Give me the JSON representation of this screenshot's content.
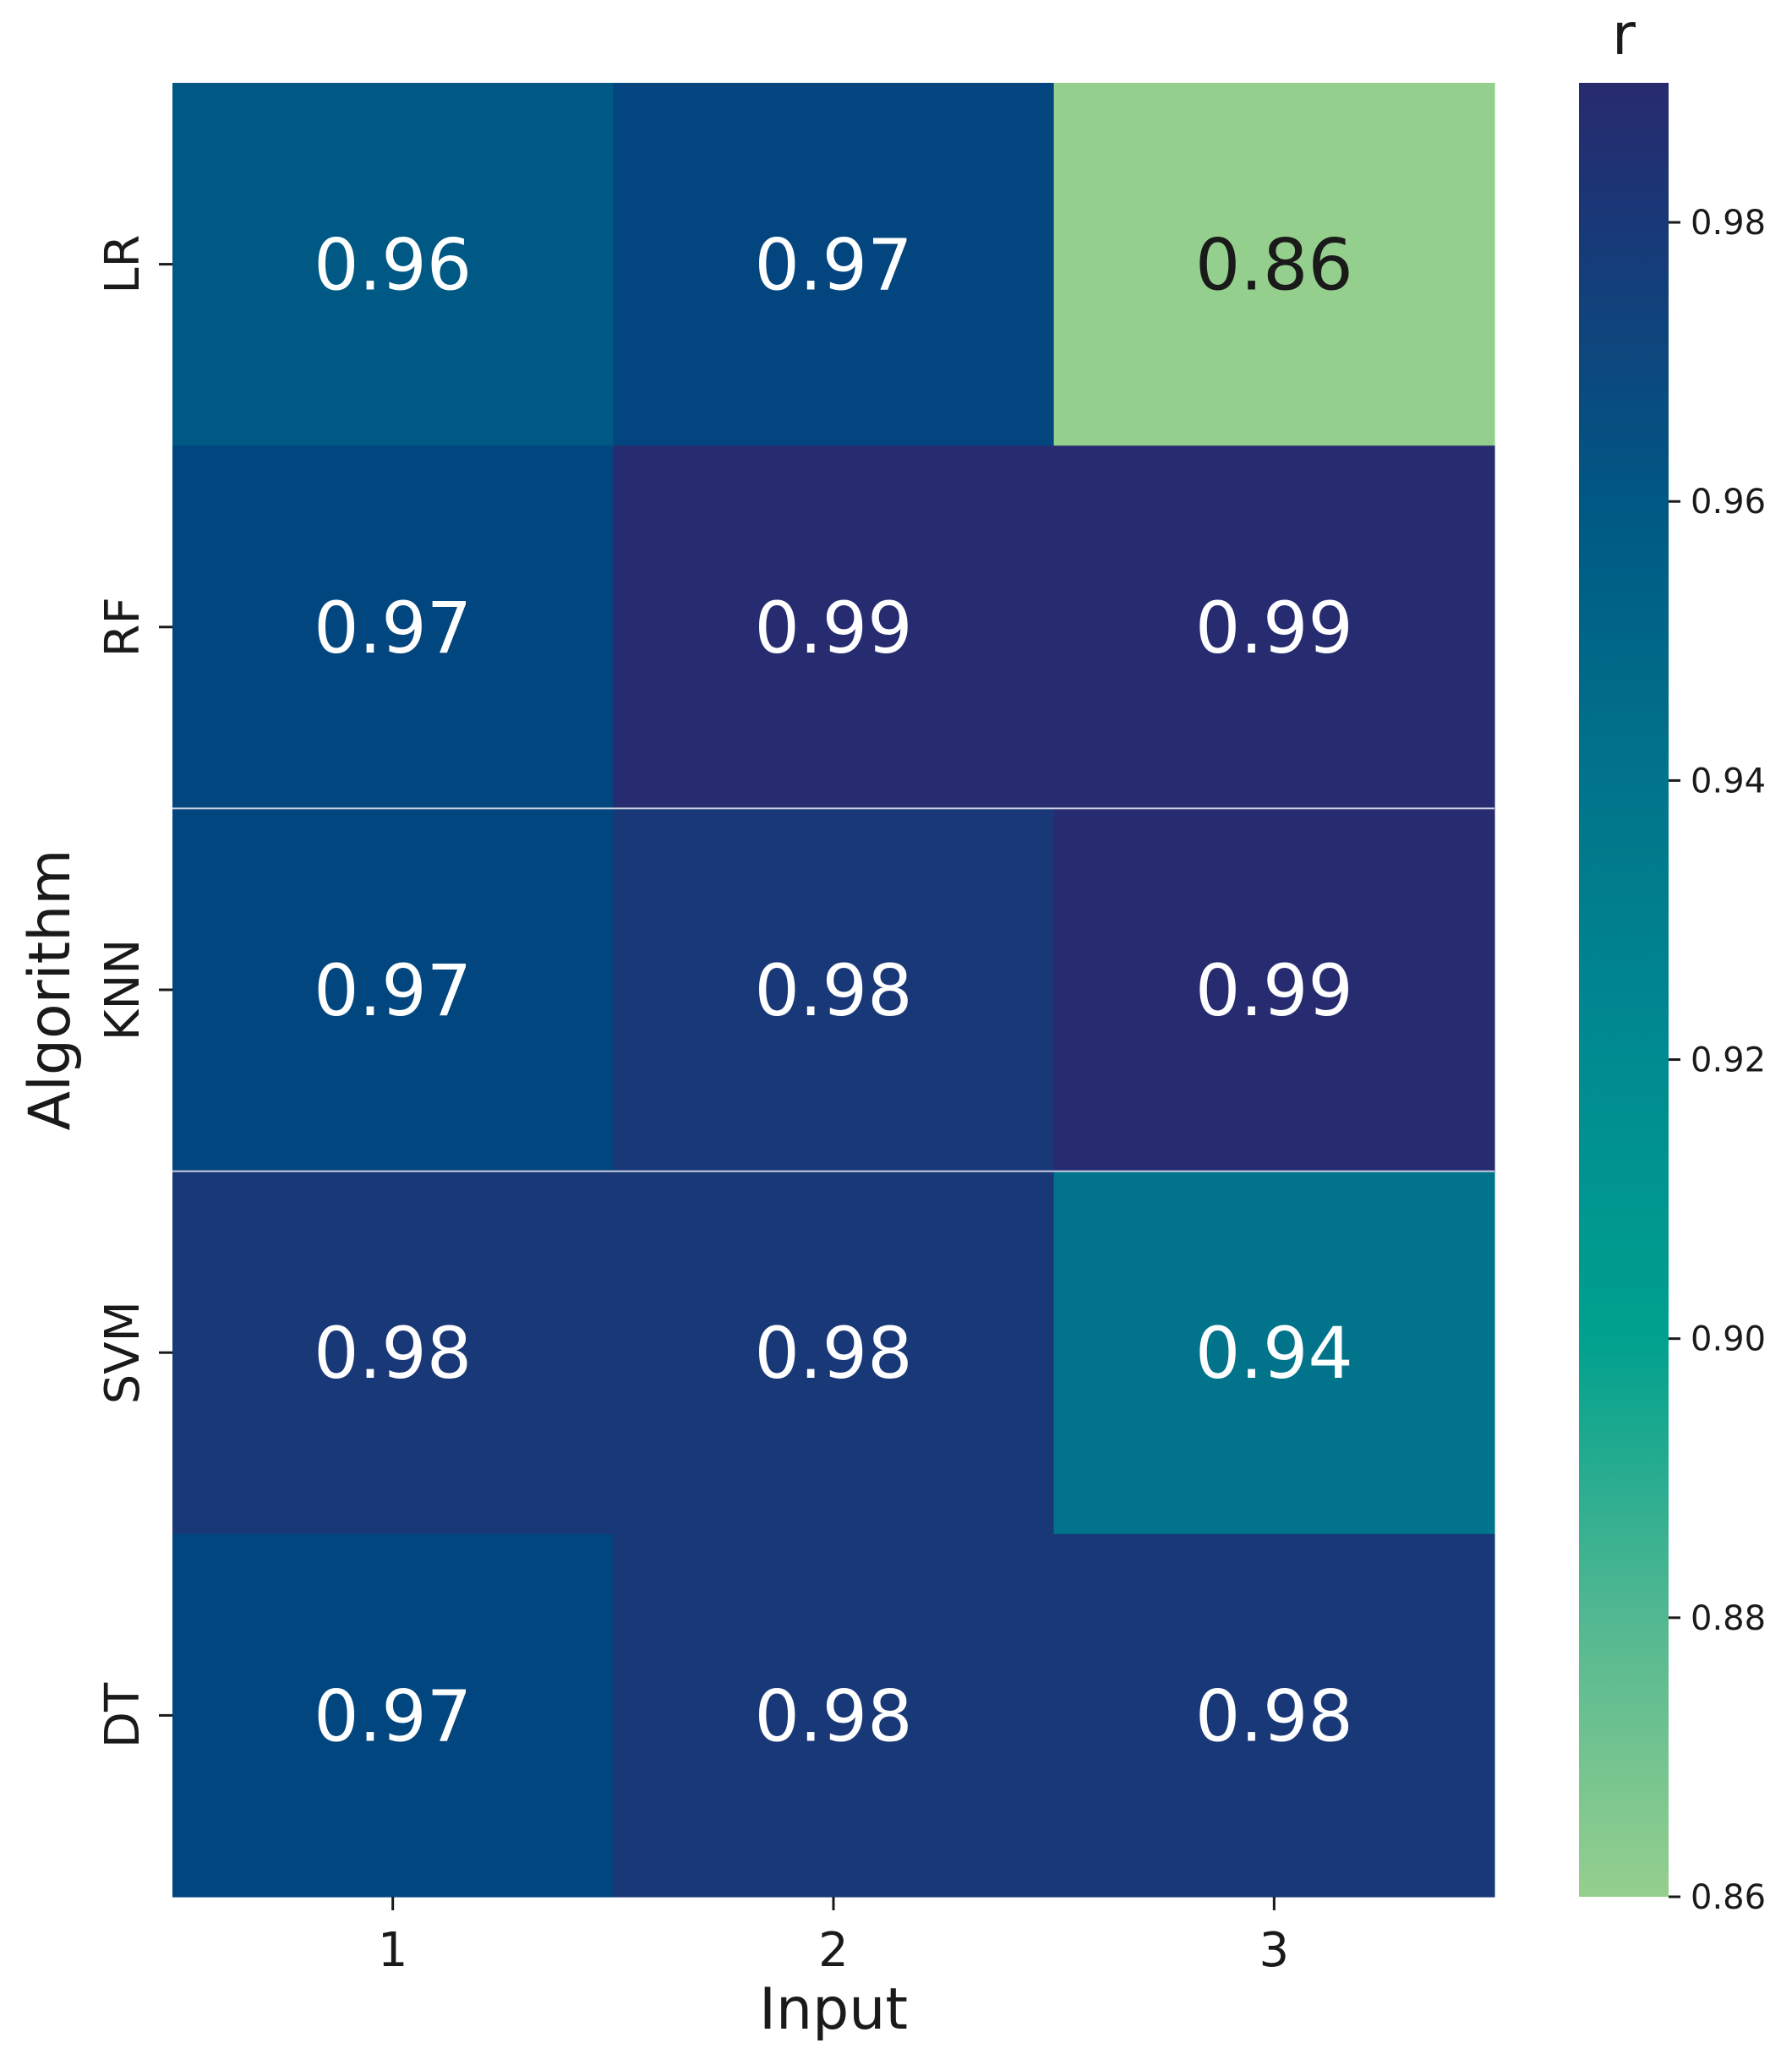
{
  "chart_data": {
    "type": "heatmap",
    "xlabel": "Input",
    "ylabel": "Algorithm",
    "colorbar_label": "r",
    "x_categories": [
      "1",
      "2",
      "3"
    ],
    "y_categories": [
      "LR",
      "RF",
      "KNN",
      "SVM",
      "DT"
    ],
    "values": [
      [
        0.96,
        0.97,
        0.86
      ],
      [
        0.97,
        0.99,
        0.99
      ],
      [
        0.97,
        0.98,
        0.99
      ],
      [
        0.98,
        0.98,
        0.94
      ],
      [
        0.97,
        0.98,
        0.98
      ]
    ],
    "value_labels": [
      [
        "0.96",
        "0.97",
        "0.86"
      ],
      [
        "0.97",
        "0.99",
        "0.99"
      ],
      [
        "0.97",
        "0.98",
        "0.99"
      ],
      [
        "0.98",
        "0.98",
        "0.94"
      ],
      [
        "0.97",
        "0.98",
        "0.98"
      ]
    ],
    "cell_colors": [
      [
        "#005884",
        "#03457f",
        "#95cf8e"
      ],
      [
        "#02467f",
        "#262c6f",
        "#262c6f"
      ],
      [
        "#02467f",
        "#193877",
        "#262c6f"
      ],
      [
        "#193877",
        "#193877",
        "#01748b"
      ],
      [
        "#02467f",
        "#193877",
        "#193877"
      ]
    ],
    "colorbar": {
      "vmin": 0.86,
      "vmax": 0.99,
      "ticks": [
        0.86,
        0.88,
        0.9,
        0.92,
        0.94,
        0.96,
        0.98
      ],
      "tick_labels": [
        "0.86",
        "0.88",
        "0.90",
        "0.92",
        "0.94",
        "0.96",
        "0.98"
      ],
      "gradient_stops": [
        {
          "value": 0.86,
          "color": "#95cf8e"
        },
        {
          "value": 0.88,
          "color": "#52b891"
        },
        {
          "value": 0.9,
          "color": "#00a18e"
        },
        {
          "value": 0.92,
          "color": "#008b91"
        },
        {
          "value": 0.94,
          "color": "#01748b"
        },
        {
          "value": 0.96,
          "color": "#005884"
        },
        {
          "value": 0.98,
          "color": "#193877"
        },
        {
          "value": 0.99,
          "color": "#272b6e"
        }
      ]
    },
    "text_dark_color": "#1a1a1a",
    "text_light_color": "#ffffff",
    "grid": false
  }
}
